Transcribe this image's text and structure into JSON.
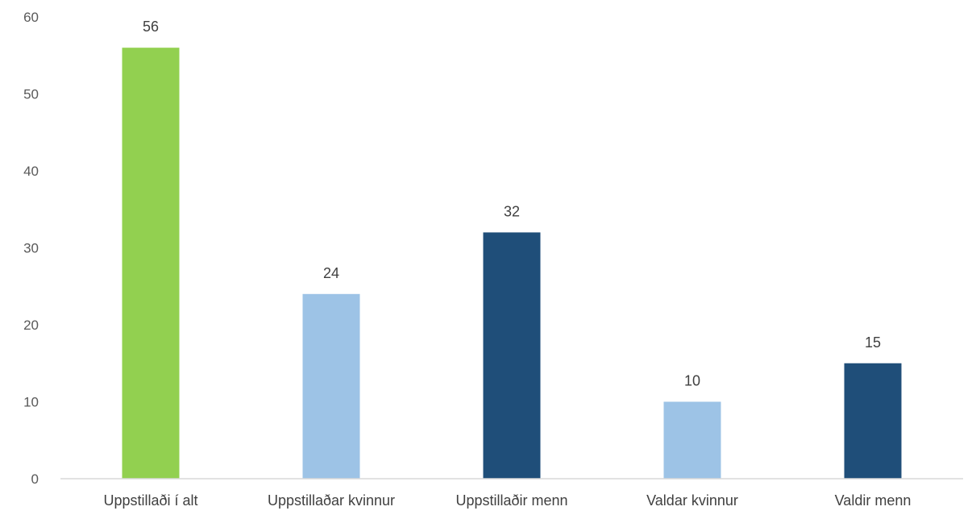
{
  "chart_data": {
    "type": "bar",
    "categories": [
      "Uppstillaði í alt",
      "Uppstillaðar kvinnur",
      "Uppstillaðir menn",
      "Valdar kvinnur",
      "Valdir menn"
    ],
    "values": [
      56,
      24,
      32,
      10,
      15
    ],
    "bar_colors": [
      "#92d050",
      "#9dc3e6",
      "#1f4e79",
      "#9dc3e6",
      "#1f4e79"
    ],
    "data_labels": [
      "56",
      "24",
      "32",
      "10",
      "15"
    ],
    "ylim": [
      0,
      60
    ],
    "yticks": [
      0,
      10,
      20,
      30,
      40,
      50,
      60
    ],
    "ytick_labels": [
      "0",
      "10",
      "20",
      "30",
      "40",
      "50",
      "60"
    ],
    "grid": false,
    "title": "",
    "xlabel": "",
    "ylabel": ""
  }
}
